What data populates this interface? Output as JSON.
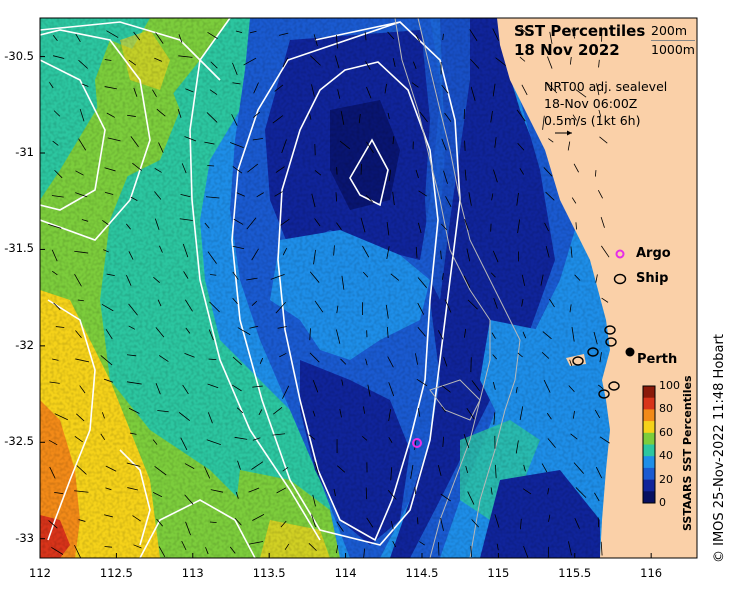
{
  "title": {
    "line1": "SST Percentiles",
    "line2": "18 Nov 2022"
  },
  "depth_labels": [
    "200m",
    "1000m"
  ],
  "info": {
    "line1": "NRT00 adj. sealevel",
    "line2": "18-Nov 06:00Z",
    "line3": "0.5m/s (1kt 6h)"
  },
  "legend": {
    "argo": "Argo",
    "ship": "Ship"
  },
  "city": "Perth",
  "credit": "© IMOS 25-Nov-2022 11:48 Hobart",
  "colorbar": {
    "title": "SSTAARS SST Percentiles",
    "ticks": [
      "100",
      "80",
      "60",
      "40",
      "20",
      "0"
    ],
    "colors": [
      "#8b1a0a",
      "#d8341a",
      "#f28a18",
      "#f5d21a",
      "#7ccd3c",
      "#2cc6a0",
      "#1e8ee8",
      "#1a5ad0",
      "#10249a",
      "#071060"
    ]
  },
  "axes": {
    "x_ticks": [
      "112",
      "112.5",
      "113",
      "113.5",
      "114",
      "114.5",
      "115",
      "115.5",
      "116"
    ],
    "y_ticks": [
      "-30.5",
      "-31",
      "-31.5",
      "-32",
      "-32.5",
      "-33"
    ],
    "x_range": [
      112,
      116.3
    ],
    "y_range": [
      -33.1,
      -30.3
    ]
  },
  "colors": {
    "land": "#fad0a8",
    "argo": "#e62ee6",
    "contour": "#ffffff",
    "isobath": "#b0b0b0"
  },
  "markers": {
    "argo_float": {
      "lon": 114.47,
      "lat": -32.46
    },
    "perth": {
      "lon": 115.86,
      "lat": -31.95
    }
  }
}
